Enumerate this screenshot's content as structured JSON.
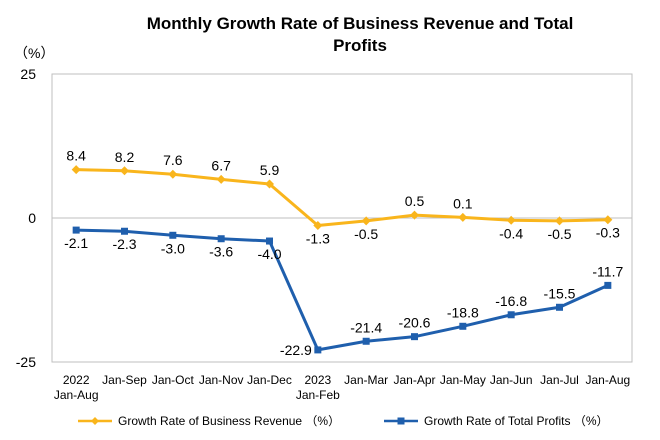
{
  "chart_data": {
    "type": "line",
    "title": "Monthly Growth Rate of Business Revenue and Total Profits",
    "title_lines": [
      "Monthly Growth Rate of Business Revenue and Total",
      "Profits"
    ],
    "unit_label": "（%）",
    "categories": [
      "2022\nJan-Aug",
      "Jan-Sep",
      "Jan-Oct",
      "Jan-Nov",
      "Jan-Dec",
      "2023\nJan-Feb",
      "Jan-Mar",
      "Jan-Apr",
      "Jan-May",
      "Jan-Jun",
      "Jan-Jul",
      "Jan-Aug"
    ],
    "yticks": [
      "25",
      "0",
      "-25"
    ],
    "ylim": [
      -25,
      25
    ],
    "grid": false,
    "legend_position": "bottom",
    "series": [
      {
        "name": "Growth Rate of Business Revenue （%）",
        "color": "#f9b51c",
        "marker": "diamond",
        "values": [
          8.4,
          8.2,
          7.6,
          6.7,
          5.9,
          -1.3,
          -0.5,
          0.5,
          0.1,
          -0.4,
          -0.5,
          -0.3
        ],
        "labels": [
          "8.4",
          "8.2",
          "7.6",
          "6.7",
          "5.9",
          "-1.3",
          "-0.5",
          "0.5",
          "0.1",
          "-0.4",
          "-0.5",
          "-0.3"
        ]
      },
      {
        "name": "Growth Rate of Total Profits （%）",
        "color": "#1f5fad",
        "marker": "square",
        "values": [
          -2.1,
          -2.3,
          -3.0,
          -3.6,
          -4.0,
          -22.9,
          -21.4,
          -20.6,
          -18.8,
          -16.8,
          -15.5,
          -11.7
        ],
        "labels": [
          "-2.1",
          "-2.3",
          "-3.0",
          "-3.6",
          "-4.0",
          "-22.9",
          "-21.4",
          "-20.6",
          "-18.8",
          "-16.8",
          "-15.5",
          "-11.7"
        ]
      }
    ]
  }
}
